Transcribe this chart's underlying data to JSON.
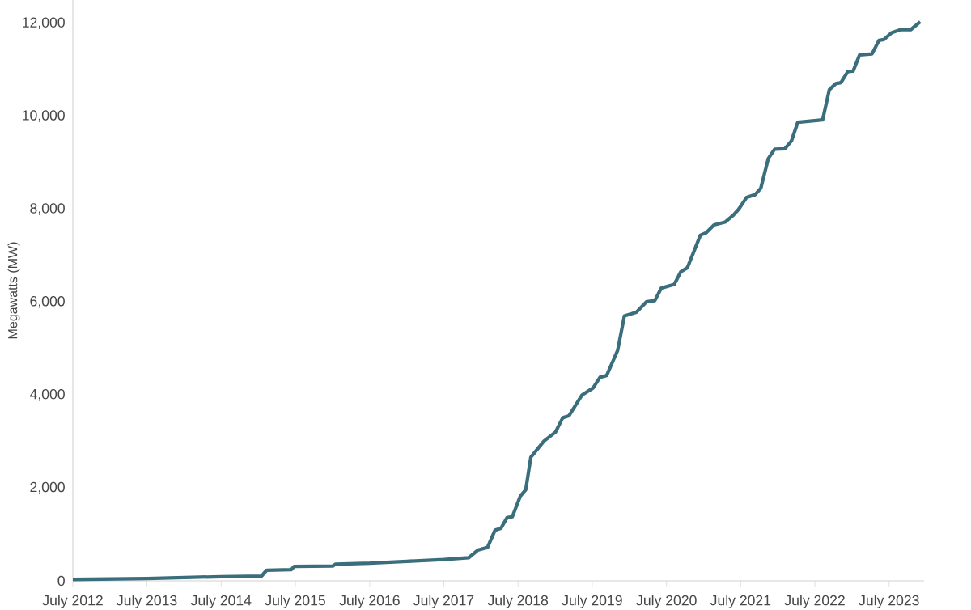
{
  "chart_data": {
    "type": "line",
    "ylabel": "Megawatts (MW)",
    "color": "#3b6e7c",
    "grid": false,
    "marker": "none",
    "line_style": "solid",
    "xlim": [
      "2012-07-01",
      "2023-12-20"
    ],
    "ylim": [
      0,
      12500
    ],
    "xticks": [
      {
        "value": "2012-07-01",
        "label": "July 2012"
      },
      {
        "value": "2013-07-01",
        "label": "July 2013"
      },
      {
        "value": "2014-07-01",
        "label": "July 2014"
      },
      {
        "value": "2015-07-01",
        "label": "July 2015"
      },
      {
        "value": "2016-07-01",
        "label": "July 2016"
      },
      {
        "value": "2017-07-01",
        "label": "July 2017"
      },
      {
        "value": "2018-07-01",
        "label": "July 2018"
      },
      {
        "value": "2019-07-01",
        "label": "July 2019"
      },
      {
        "value": "2020-07-01",
        "label": "July 2020"
      },
      {
        "value": "2021-07-01",
        "label": "July 2021"
      },
      {
        "value": "2022-07-01",
        "label": "July 2022"
      },
      {
        "value": "2023-07-01",
        "label": "July 2023"
      }
    ],
    "yticks": [
      {
        "value": 0,
        "label": "0"
      },
      {
        "value": 2000,
        "label": "2,000"
      },
      {
        "value": 4000,
        "label": "4,000"
      },
      {
        "value": 6000,
        "label": "6,000"
      },
      {
        "value": 8000,
        "label": "8,000"
      },
      {
        "value": 10000,
        "label": "10,000"
      },
      {
        "value": 12000,
        "label": "12,000"
      }
    ],
    "x": [
      "2012-07-01",
      "2013-07-01",
      "2014-07-01",
      "2015-01-15",
      "2015-02-10",
      "2015-06-10",
      "2015-06-25",
      "2016-01-01",
      "2016-01-15",
      "2016-07-01",
      "2017-01-01",
      "2017-07-01",
      "2017-11-01",
      "2017-12-15",
      "2018-02-01",
      "2018-03-10",
      "2018-04-08",
      "2018-05-08",
      "2018-06-03",
      "2018-07-12",
      "2018-08-08",
      "2018-09-02",
      "2018-11-06",
      "2019-01-01",
      "2019-02-06",
      "2019-03-08",
      "2019-05-12",
      "2019-07-05",
      "2019-08-08",
      "2019-09-10",
      "2019-11-03",
      "2019-12-06",
      "2020-02-03",
      "2020-03-25",
      "2020-05-04",
      "2020-06-05",
      "2020-08-08",
      "2020-09-09",
      "2020-10-12",
      "2020-12-15",
      "2021-01-12",
      "2021-02-20",
      "2021-04-15",
      "2021-05-26",
      "2021-06-20",
      "2021-07-30",
      "2021-09-10",
      "2021-10-08",
      "2021-11-14",
      "2021-12-15",
      "2022-02-03",
      "2022-03-08",
      "2022-04-08",
      "2022-08-08",
      "2022-09-10",
      "2022-10-12",
      "2022-11-06",
      "2022-12-10",
      "2023-01-05",
      "2023-02-06",
      "2023-04-08",
      "2023-05-12",
      "2023-06-05",
      "2023-07-15",
      "2023-08-25",
      "2023-10-15",
      "2023-12-01"
    ],
    "values": [
      30,
      50,
      90,
      100,
      230,
      240,
      310,
      320,
      360,
      380,
      420,
      460,
      500,
      660,
      720,
      1090,
      1130,
      1360,
      1380,
      1820,
      1960,
      2660,
      3010,
      3200,
      3510,
      3550,
      4000,
      4150,
      4380,
      4420,
      4960,
      5700,
      5780,
      6010,
      6030,
      6300,
      6380,
      6650,
      6740,
      7440,
      7490,
      7660,
      7720,
      7870,
      7990,
      8250,
      8310,
      8450,
      9090,
      9290,
      9300,
      9470,
      9870,
      9920,
      10570,
      10700,
      10720,
      10960,
      10970,
      11320,
      11340,
      11630,
      11650,
      11800,
      11860,
      11860,
      12030
    ]
  }
}
